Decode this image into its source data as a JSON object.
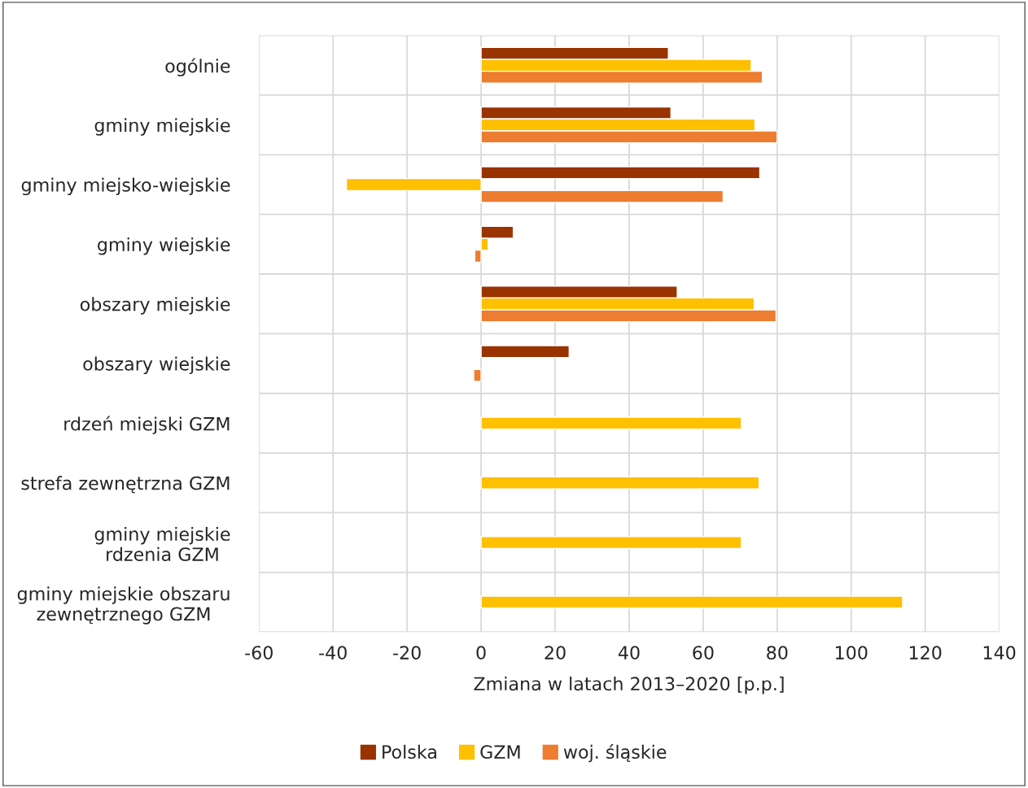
{
  "chart_data": {
    "type": "bar",
    "orientation": "horizontal",
    "xlabel": "Zmiana w latach 2013–2020 [p.p.]",
    "categories": [
      "ogólnie",
      "gminy miejskie",
      "gminy miejsko-wiejskie",
      "gminy wiejskie",
      "obszary miejskie",
      "obszary wiejskie",
      "rdzeń miejski GZM",
      "strefa zewnętrzna GZM",
      "gminy miejskie\nrdzenia GZM",
      "gminy miejskie obszaru\nzewnętrznego GZM"
    ],
    "series": [
      {
        "name": "Polska",
        "color": "#993300",
        "values": [
          50.6,
          51.3,
          75.3,
          8.7,
          53,
          23.8,
          null,
          null,
          null,
          null
        ]
      },
      {
        "name": "GZM",
        "color": "#ffc000",
        "values": [
          73,
          74,
          -36.4,
          1.9,
          73.8,
          null,
          70.3,
          75.1,
          70.3,
          113.9
        ]
      },
      {
        "name": "woj. śląskie",
        "color": "#ed7d31",
        "values": [
          76,
          80,
          65.4,
          -1.7,
          79.7,
          -2,
          null,
          null,
          null,
          null
        ]
      }
    ],
    "xlim": [
      -60,
      140
    ],
    "xticks": [
      -60,
      -40,
      -20,
      0,
      20,
      40,
      60,
      80,
      100,
      120,
      140
    ],
    "grid": true,
    "legend": "bottom"
  }
}
